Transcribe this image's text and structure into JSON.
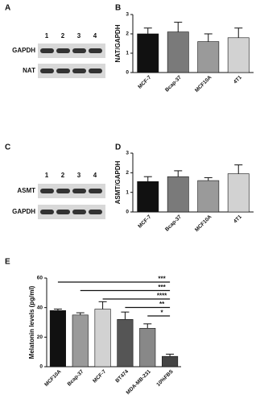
{
  "blots": [
    {
      "label": "A",
      "lanes": [
        "1",
        "2",
        "3",
        "4"
      ],
      "rows": [
        "GAPDH",
        "NAT"
      ]
    },
    {
      "label": "C",
      "lanes": [
        "1",
        "2",
        "3",
        "4"
      ],
      "rows": [
        "ASMT",
        "GAPDH"
      ]
    }
  ],
  "chart_data": [
    {
      "type": "bar",
      "label": "B",
      "y_label": "NAT/GAPDH",
      "categories": [
        "MCF-7",
        "Bcap-37",
        "MCF10A",
        "4T1"
      ],
      "values": [
        2.0,
        2.1,
        1.6,
        1.8
      ],
      "errors": [
        0.3,
        0.5,
        0.4,
        0.5
      ],
      "colors": [
        "#111111",
        "#7a7a7a",
        "#9a9a9a",
        "#d2d2d2"
      ],
      "ylim": [
        0,
        3
      ],
      "yticks": [
        0,
        1,
        2,
        3
      ]
    },
    {
      "type": "bar",
      "label": "D",
      "y_label": "ASMT/GAPDH",
      "categories": [
        "MCF-7",
        "Bcap-37",
        "MCF10A",
        "4T1"
      ],
      "values": [
        1.55,
        1.8,
        1.6,
        1.95
      ],
      "errors": [
        0.25,
        0.3,
        0.15,
        0.45
      ],
      "colors": [
        "#111111",
        "#7a7a7a",
        "#9a9a9a",
        "#d2d2d2"
      ],
      "ylim": [
        0,
        3
      ],
      "yticks": [
        0,
        1,
        2,
        3
      ]
    },
    {
      "type": "bar",
      "label": "E",
      "y_label": "Melatonin levels (pg/ml)",
      "categories": [
        "MCF10A",
        "Bcap-37",
        "MCF-7",
        "BT474",
        "MDA-MB-231",
        "10%FBS"
      ],
      "values": [
        38,
        35,
        39,
        32,
        26,
        7
      ],
      "errors": [
        1,
        1.5,
        5,
        5,
        3,
        1.5
      ],
      "colors": [
        "#111111",
        "#9a9a9a",
        "#d2d2d2",
        "#555555",
        "#888888",
        "#444444"
      ],
      "ylim": [
        0,
        60
      ],
      "yticks": [
        0,
        20,
        40,
        60
      ],
      "annotations": [
        "***",
        "***",
        "****",
        "**",
        "*"
      ]
    }
  ]
}
